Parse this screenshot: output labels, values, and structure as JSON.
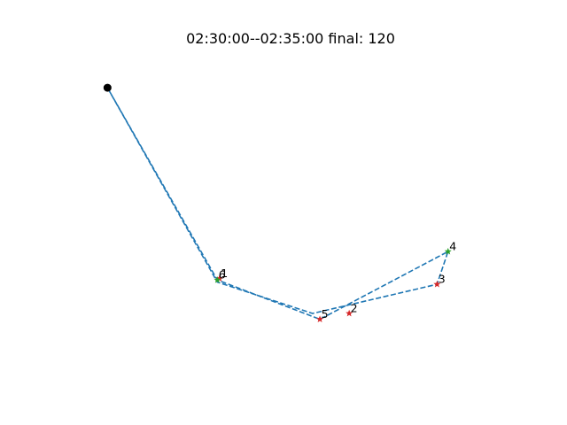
{
  "chart_data": {
    "type": "line",
    "title": "02:30:00--02:35:00 final: 120",
    "xlabel": "",
    "ylabel": "",
    "axes_visible": false,
    "grid": false,
    "xlim": [
      0,
      600
    ],
    "ylim": [
      0,
      450
    ],
    "route": {
      "color": "#1f77b4",
      "line_style": "dashed",
      "x": [
        50,
        200,
        330,
        500,
        515,
        340,
        200,
        50
      ],
      "y": [
        400,
        133,
        90,
        130,
        175,
        82,
        136,
        400
      ]
    },
    "start_point": {
      "x": 50,
      "y": 400,
      "color": "#000000",
      "marker": "circle"
    },
    "stops": [
      {
        "label": "1",
        "x": 203,
        "y": 138,
        "color": "#d62728",
        "marker": "star"
      },
      {
        "label": "2",
        "x": 380,
        "y": 90,
        "color": "#d62728",
        "marker": "star"
      },
      {
        "label": "3",
        "x": 500,
        "y": 130,
        "color": "#d62728",
        "marker": "star"
      },
      {
        "label": "4",
        "x": 515,
        "y": 175,
        "color": "#2ca02c",
        "marker": "star"
      },
      {
        "label": "5",
        "x": 340,
        "y": 82,
        "color": "#d62728",
        "marker": "star"
      },
      {
        "label": "6",
        "x": 200,
        "y": 136,
        "color": "#2ca02c",
        "marker": "star"
      }
    ]
  }
}
